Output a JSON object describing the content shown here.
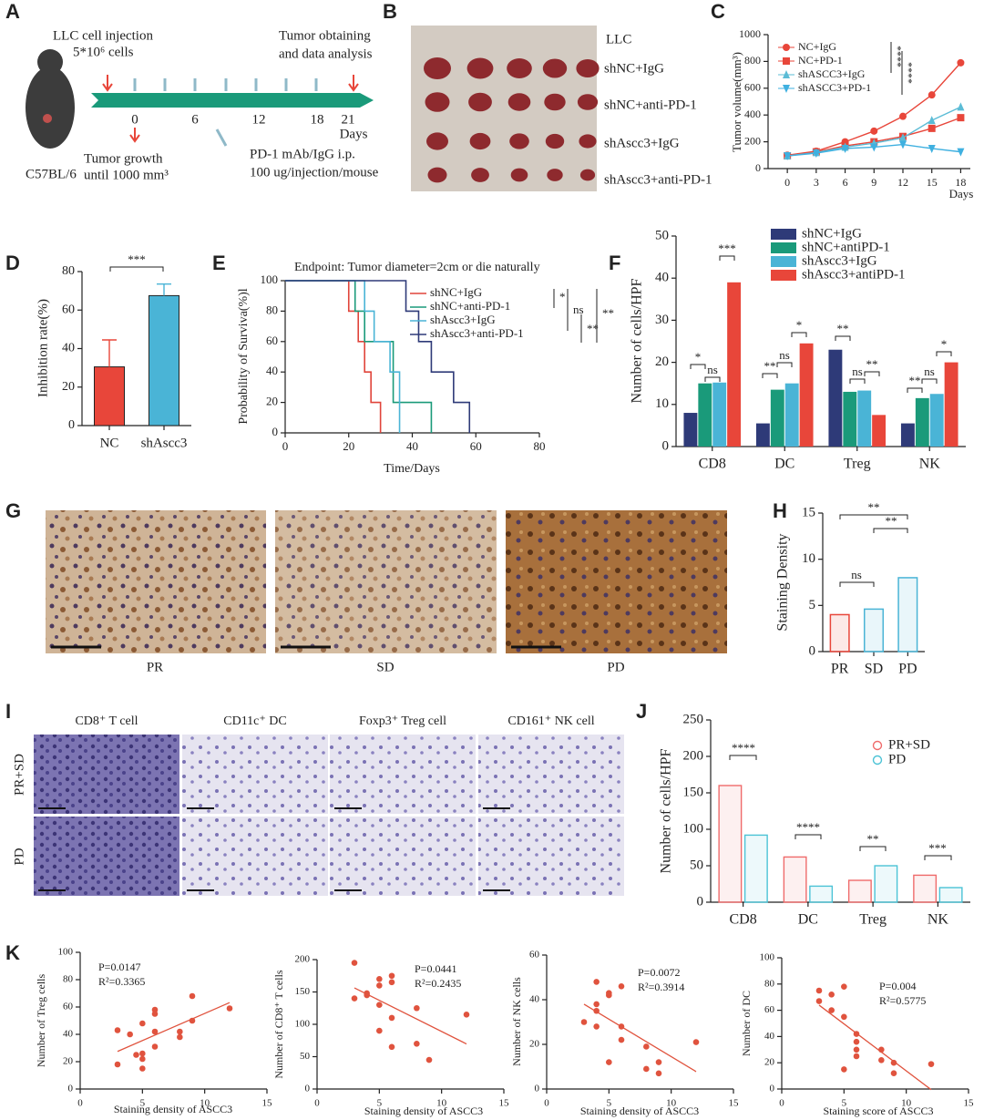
{
  "panel_labels": [
    "A",
    "B",
    "C",
    "D",
    "E",
    "F",
    "G",
    "H",
    "I",
    "J",
    "K"
  ],
  "schematic": {
    "injection": "LLC cell injection",
    "cells": "5*10⁶ cells",
    "obtain1": "Tumor obtaining",
    "obtain2": "and data analysis",
    "timeline": [
      "0",
      "6",
      "12",
      "18",
      "21"
    ],
    "days": "Days",
    "growth1": "Tumor growth",
    "growth2": "until 1000 mm³",
    "dose1": "PD-1 mAb/IgG i.p.",
    "dose2": "100 ug/injection/mouse",
    "mouse": "C57BL/6"
  },
  "photo": {
    "rows": [
      "LLC",
      "shNC+IgG",
      "shNC+anti-PD-1",
      "shAscc3+IgG",
      "shAscc3+anti-PD-1"
    ]
  },
  "histology_g": {
    "labels": [
      "PR",
      "SD",
      "PD"
    ]
  },
  "histology_i": {
    "columns": [
      "CD8⁺ T cell",
      "CD11c⁺ DC",
      "Foxp3⁺ Treg cell",
      "CD161⁺ NK cell"
    ],
    "rows": [
      "PR+SD",
      "PD"
    ]
  },
  "chart_data": [
    {
      "type": "line",
      "x": [
        0,
        3,
        6,
        9,
        12,
        15,
        18
      ],
      "xlim": [
        -2,
        19
      ],
      "xticks": [
        0,
        3,
        6,
        9,
        12,
        15,
        18
      ],
      "xlabel": "Days",
      "ylim": [
        0,
        1000
      ],
      "yticks": [
        0,
        200,
        400,
        600,
        800,
        1000
      ],
      "ylabel": "Tumor volume(mm³)",
      "series": [
        {
          "name": "NC+IgG",
          "color": "#e8463a",
          "marker": "circle",
          "values": [
            100,
            130,
            200,
            280,
            390,
            550,
            790
          ]
        },
        {
          "name": "NC+PD-1",
          "color": "#e8463a",
          "marker": "square",
          "values": [
            95,
            125,
            170,
            200,
            240,
            300,
            380
          ]
        },
        {
          "name": "shASCC3+IgG",
          "color": "#5bbcd6",
          "marker": "triangle",
          "values": [
            95,
            120,
            160,
            190,
            230,
            360,
            460
          ]
        },
        {
          "name": "shASCC3+PD-1",
          "color": "#3fb0e0",
          "marker": "triangle-down",
          "values": [
            95,
            115,
            150,
            160,
            180,
            150,
            125
          ]
        }
      ],
      "annotations": [
        "****",
        "****"
      ]
    },
    {
      "type": "bar",
      "categories": [
        "NC",
        "shAscc3"
      ],
      "values": [
        30.5,
        67.5
      ],
      "errors": [
        14,
        6
      ],
      "colors": [
        "#e8463a",
        "#4ab4d6"
      ],
      "style": "filled",
      "ylim": [
        0,
        80
      ],
      "yticks": [
        0,
        20,
        40,
        60,
        80
      ],
      "ylabel": "Inhibition rate(%)",
      "annotations": [
        "***"
      ]
    },
    {
      "type": "step",
      "xlim": [
        0,
        80
      ],
      "xticks": [
        0,
        20,
        40,
        60,
        80
      ],
      "xlabel": "Time/Days",
      "ylim": [
        0,
        100
      ],
      "yticks": [
        0,
        20,
        40,
        60,
        80,
        100
      ],
      "ylabel": "Probability of Surviva(%)l",
      "note": "Endpoint: Tumor diameter=2cm or die naturally",
      "series": [
        {
          "name": "shNC+IgG",
          "color": "#e0443a",
          "x": [
            0,
            20,
            23,
            25,
            27,
            30
          ],
          "values": [
            100,
            80,
            60,
            40,
            20,
            0
          ]
        },
        {
          "name": "shNC+anti-PD-1",
          "color": "#1a9a7a",
          "x": [
            0,
            22,
            25,
            34,
            46
          ],
          "values": [
            100,
            80,
            60,
            20,
            0
          ]
        },
        {
          "name": "shAscc3+IgG",
          "color": "#4ab4d6",
          "x": [
            0,
            25,
            28,
            33,
            36
          ],
          "values": [
            100,
            80,
            60,
            40,
            0
          ]
        },
        {
          "name": "shAscc3+anti-PD-1",
          "color": "#2e3a78",
          "x": [
            0,
            38,
            42,
            46,
            53,
            58
          ],
          "values": [
            100,
            80,
            60,
            40,
            20,
            0
          ]
        }
      ],
      "annotations": [
        "*",
        "ns",
        "**",
        "**"
      ]
    },
    {
      "type": "grouped_bar",
      "style": "filled",
      "categories": [
        "CD8",
        "DC",
        "Treg",
        "NK"
      ],
      "ylim": [
        0,
        50
      ],
      "yticks": [
        0,
        10,
        20,
        30,
        40,
        50
      ],
      "ylabel": "Number of cells/HPF",
      "series": [
        {
          "name": "shNC+IgG",
          "color": "#2e3a78",
          "values": [
            8,
            5.5,
            23,
            5.5
          ]
        },
        {
          "name": "shNC+antiPD-1",
          "color": "#1a9a7a",
          "values": [
            15,
            13.5,
            13,
            11.5
          ]
        },
        {
          "name": "shAscc3+IgG",
          "color": "#4ab4d6",
          "values": [
            15.2,
            15,
            13.3,
            12.5
          ]
        },
        {
          "name": "shAscc3+antiPD-1",
          "color": "#e8463a",
          "values": [
            39,
            24.5,
            7.5,
            20
          ]
        }
      ],
      "annotations": [
        "*",
        "ns",
        "***",
        "**",
        "ns",
        "*",
        "**",
        "ns",
        "**",
        "**",
        "ns",
        "*"
      ]
    },
    {
      "type": "bar",
      "categories": [
        "PR",
        "SD",
        "PD"
      ],
      "values": [
        4,
        4.6,
        8
      ],
      "colors": [
        "#e8463a",
        "#4ab4d6",
        "#4ab4d6"
      ],
      "style": "outline",
      "ylim": [
        0,
        15
      ],
      "yticks": [
        0,
        5,
        10,
        15
      ],
      "ylabel": "Staining Density",
      "annotations": [
        "ns",
        "**",
        "**"
      ]
    },
    {
      "type": "grouped_bar",
      "style": "outline",
      "categories": [
        "CD8",
        "DC",
        "Treg",
        "NK"
      ],
      "ylim": [
        0,
        250
      ],
      "yticks": [
        0,
        50,
        100,
        150,
        200,
        250
      ],
      "ylabel": "Number of cells/HPF",
      "series": [
        {
          "name": "PR+SD",
          "color": "#ef6b6b",
          "values": [
            160,
            62,
            30,
            37
          ]
        },
        {
          "name": "PD",
          "color": "#4cc3d6",
          "values": [
            92,
            22,
            50,
            20
          ]
        }
      ],
      "annotations": [
        "****",
        "****",
        "**",
        "***"
      ]
    },
    {
      "type": "scatter",
      "color": "#e0533e",
      "xlim": [
        0,
        15
      ],
      "xticks": [
        0,
        5,
        10,
        15
      ],
      "xlabel": "Staining density of ASCC3",
      "ylim": [
        0,
        100
      ],
      "yticks": [
        0,
        20,
        40,
        60,
        80,
        100
      ],
      "ylabel": "Number of Treg cells",
      "x": [
        3,
        3,
        4,
        4.5,
        5,
        5,
        5,
        5,
        6,
        6,
        6,
        6,
        8,
        8,
        9,
        9,
        12
      ],
      "values": [
        18,
        43,
        40,
        25,
        26,
        22,
        15,
        48,
        58,
        55,
        31,
        42,
        38,
        42,
        50,
        68,
        59
      ],
      "annotations": [
        "P=0.0147",
        "R²=0.3365"
      ]
    },
    {
      "type": "scatter",
      "color": "#e0533e",
      "xlim": [
        0,
        15
      ],
      "xticks": [
        0,
        5,
        10,
        15
      ],
      "xlabel": "Staining density of ASCC3",
      "ylim": [
        0,
        200
      ],
      "yticks": [
        0,
        50,
        100,
        150,
        200
      ],
      "ylabel": "Number of CD8⁺ T cells",
      "x": [
        3,
        3,
        4,
        4,
        5,
        5,
        5,
        5,
        6,
        6,
        6,
        6,
        8,
        8,
        9,
        12
      ],
      "values": [
        195,
        140,
        145,
        148,
        170,
        160,
        130,
        90,
        175,
        165,
        110,
        65,
        125,
        70,
        45,
        115
      ],
      "annotations": [
        "P=0.0441",
        "R²=0.2435"
      ]
    },
    {
      "type": "scatter",
      "color": "#e0533e",
      "xlim": [
        0,
        15
      ],
      "xticks": [
        0,
        5,
        10,
        15
      ],
      "xlabel": "Staining density of ASCC3",
      "ylim": [
        0,
        60
      ],
      "yticks": [
        0,
        20,
        40,
        60
      ],
      "ylabel": "Number of NK cells",
      "x": [
        3,
        4,
        4,
        4,
        4,
        5,
        5,
        5,
        6,
        6,
        6,
        8,
        8,
        9,
        9,
        12
      ],
      "values": [
        30,
        38,
        35,
        48,
        28,
        42,
        43,
        12,
        28,
        46,
        22,
        19,
        9,
        12,
        7,
        21
      ],
      "annotations": [
        "P=0.0072",
        "R²=0.3914"
      ]
    },
    {
      "type": "scatter",
      "color": "#e0533e",
      "xlim": [
        0,
        15
      ],
      "xticks": [
        0,
        5,
        10,
        15
      ],
      "xlabel": "Staining score of ASCC3",
      "ylim": [
        0,
        100
      ],
      "yticks": [
        0,
        20,
        40,
        60,
        80,
        100
      ],
      "ylabel": "Number of DC",
      "x": [
        3,
        3,
        4,
        4,
        5,
        5,
        5,
        6,
        6,
        6,
        6,
        8,
        8,
        9,
        9,
        12
      ],
      "values": [
        75,
        67,
        72,
        60,
        78,
        55,
        15,
        42,
        36,
        30,
        25,
        22,
        30,
        20,
        12,
        19
      ],
      "annotations": [
        "P=0.004",
        "R²=0.5775"
      ]
    }
  ]
}
